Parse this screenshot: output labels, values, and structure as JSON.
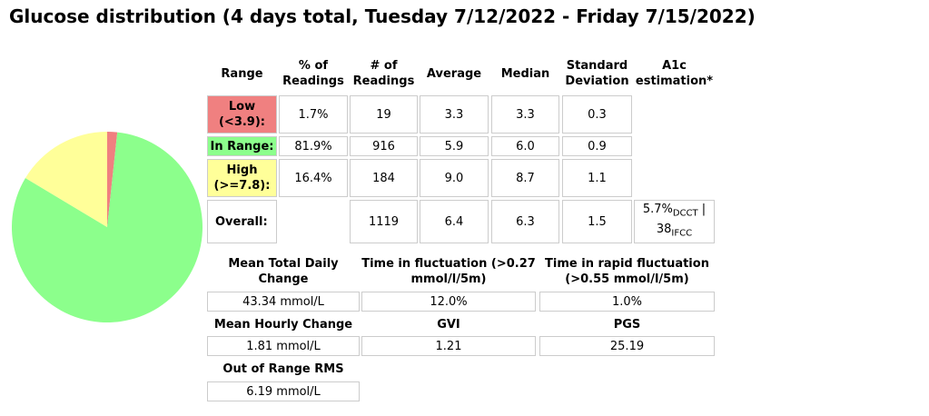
{
  "title": "Glucose distribution (4 days total, Tuesday 7/12/2022 - Friday 7/15/2022)",
  "chart_data": {
    "type": "pie",
    "values": [
      1.7,
      81.9,
      16.4
    ],
    "colors": [
      "#f08080",
      "#8cff8c",
      "#ffff99"
    ]
  },
  "distribution_table": {
    "headers": [
      "Range",
      "% of Readings",
      "# of Readings",
      "Average",
      "Median",
      "Standard Deviation",
      "A1c estimation*"
    ],
    "rows": [
      {
        "range": "Low",
        "range_note": "(<3.9):",
        "color": "#f08080",
        "pct": "1.7%",
        "count": "19",
        "avg": "3.3",
        "median": "3.3",
        "sd": "0.3"
      },
      {
        "range": "In Range:",
        "color": "#8cff8c",
        "pct": "81.9%",
        "count": "916",
        "avg": "5.9",
        "median": "6.0",
        "sd": "0.9"
      },
      {
        "range": "High",
        "range_note": "(>=7.8):",
        "color": "#ffff99",
        "pct": "16.4%",
        "count": "184",
        "avg": "9.0",
        "median": "8.7",
        "sd": "1.1"
      },
      {
        "range": "Overall:",
        "count": "1119",
        "avg": "6.4",
        "median": "6.3",
        "sd": "1.5",
        "a1c": {
          "dcct": "5.7%",
          "dcct_label": "DCCT",
          "sep": " |",
          "ifcc": "38",
          "ifcc_label": "IFCC"
        }
      }
    ]
  },
  "stats": {
    "rows": [
      [
        {
          "label": "Mean Total Daily Change",
          "value": "43.34 mmol/L"
        },
        {
          "label": "Time in fluctuation (>0.27 mmol/l/5m)",
          "value": "12.0%"
        },
        {
          "label": "Time in rapid fluctuation (>0.55 mmol/l/5m)",
          "value": "1.0%"
        }
      ],
      [
        {
          "label": "Mean Hourly Change",
          "value": "1.81 mmol/L"
        },
        {
          "label": "GVI",
          "value": "1.21"
        },
        {
          "label": "PGS",
          "value": "25.19"
        }
      ],
      [
        {
          "label": "Out of Range RMS",
          "value": "6.19 mmol/L"
        }
      ]
    ]
  }
}
